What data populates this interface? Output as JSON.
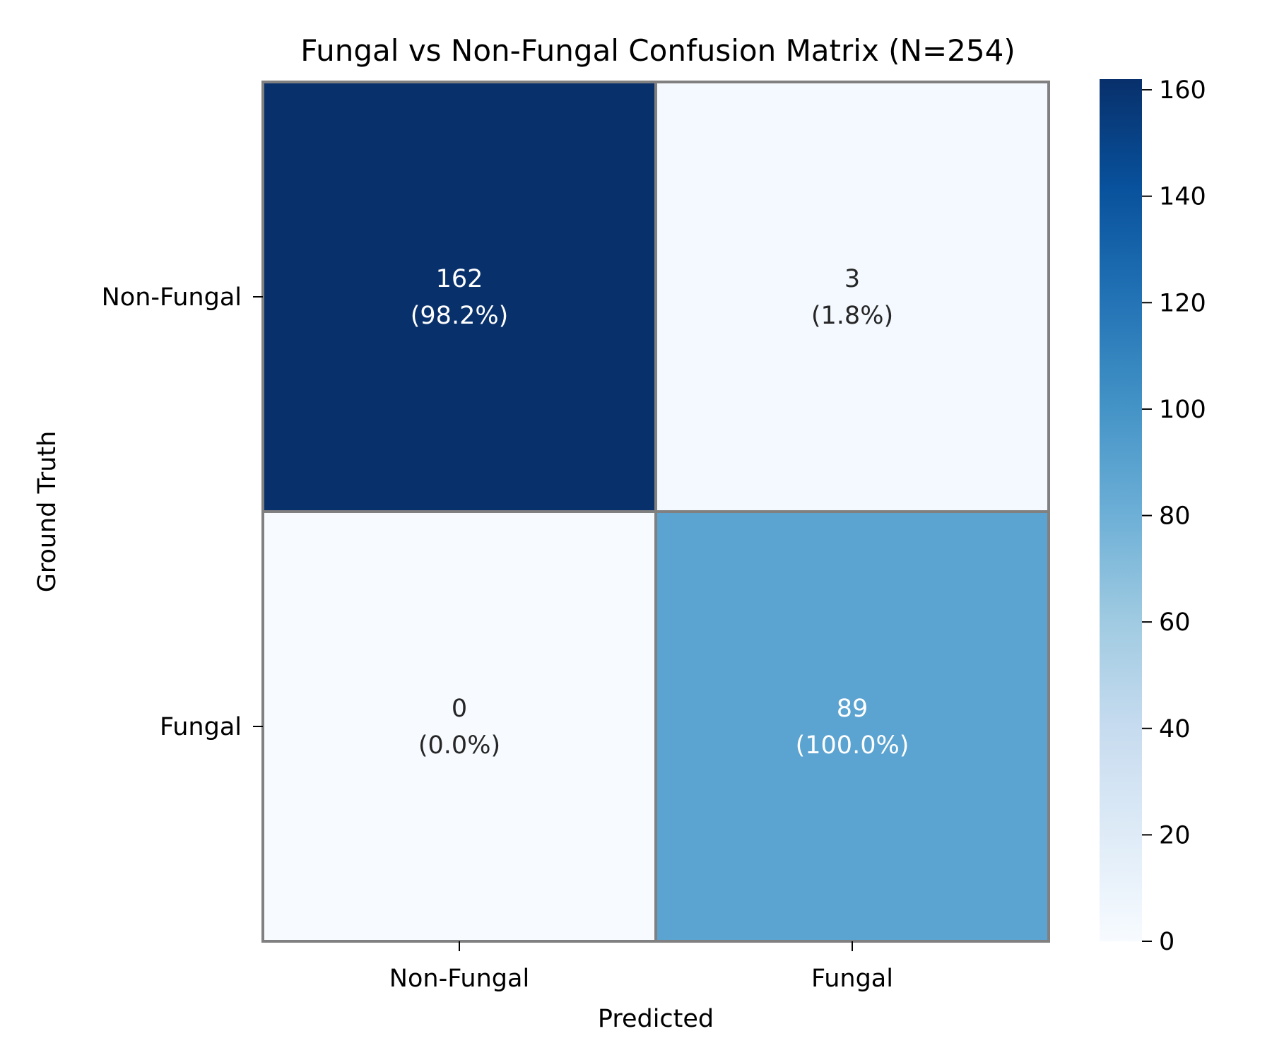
{
  "chart_data": {
    "type": "heatmap",
    "title": "Fungal vs Non-Fungal Confusion Matrix (N=254)",
    "xlabel": "Predicted",
    "ylabel": "Ground Truth",
    "x_categories": [
      "Non-Fungal",
      "Fungal"
    ],
    "y_categories": [
      "Non-Fungal",
      "Fungal"
    ],
    "values": [
      [
        162,
        3
      ],
      [
        0,
        89
      ]
    ],
    "cell_labels": [
      [
        {
          "count": "162",
          "percent": "(98.2%)"
        },
        {
          "count": "3",
          "percent": "(1.8%)"
        }
      ],
      [
        {
          "count": "0",
          "percent": "(0.0%)"
        },
        {
          "count": "89",
          "percent": "(100.0%)"
        }
      ]
    ],
    "colorbar": {
      "range": [
        0,
        162
      ],
      "ticks": [
        0,
        20,
        40,
        60,
        80,
        100,
        120,
        140,
        160
      ],
      "tick_labels": [
        "0",
        "20",
        "40",
        "60",
        "80",
        "100",
        "120",
        "140",
        "160"
      ],
      "colormap": "Blues"
    },
    "grid": false,
    "legend": "colorbar-right"
  }
}
